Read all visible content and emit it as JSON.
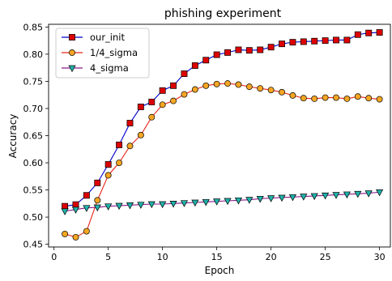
{
  "chart_data": {
    "type": "line",
    "title": "phishing experiment",
    "xlabel": "Epoch",
    "ylabel": "Accuracy",
    "xlim": [
      -0.5,
      31
    ],
    "ylim": [
      0.445,
      0.855
    ],
    "xticks": [
      0,
      5,
      10,
      15,
      20,
      25,
      30
    ],
    "yticks": [
      0.45,
      0.5,
      0.55,
      0.6,
      0.65,
      0.7,
      0.75,
      0.8,
      0.85
    ],
    "xtick_labels": [
      "0",
      "5",
      "10",
      "15",
      "20",
      "25",
      "30"
    ],
    "ytick_labels": [
      "0.45",
      "0.50",
      "0.55",
      "0.60",
      "0.65",
      "0.70",
      "0.75",
      "0.80",
      "0.85"
    ],
    "grid": false,
    "legend_position": "upper-left",
    "x": [
      1,
      2,
      3,
      4,
      5,
      6,
      7,
      8,
      9,
      10,
      11,
      12,
      13,
      14,
      15,
      16,
      17,
      18,
      19,
      20,
      21,
      22,
      23,
      24,
      25,
      26,
      27,
      28,
      29,
      30
    ],
    "series": [
      {
        "name": "our_init",
        "marker": "square",
        "line_color": "#0000cc",
        "marker_color": "#dd0000",
        "values": [
          0.52,
          0.523,
          0.54,
          0.563,
          0.597,
          0.633,
          0.673,
          0.703,
          0.712,
          0.733,
          0.742,
          0.764,
          0.779,
          0.789,
          0.799,
          0.803,
          0.808,
          0.807,
          0.808,
          0.813,
          0.819,
          0.822,
          0.823,
          0.824,
          0.825,
          0.826,
          0.826,
          0.836,
          0.839,
          0.84
        ]
      },
      {
        "name": "1/4_sigma",
        "marker": "circle",
        "line_color": "#e8241a",
        "marker_color": "#f5a623",
        "values": [
          0.469,
          0.463,
          0.474,
          0.531,
          0.577,
          0.6,
          0.631,
          0.651,
          0.684,
          0.707,
          0.714,
          0.726,
          0.735,
          0.742,
          0.745,
          0.746,
          0.744,
          0.74,
          0.737,
          0.734,
          0.73,
          0.724,
          0.719,
          0.718,
          0.72,
          0.72,
          0.718,
          0.722,
          0.719,
          0.717
        ]
      },
      {
        "name": "4_sigma",
        "marker": "triangle-down",
        "line_color": "#8b1a8b",
        "marker_color": "#20b2aa",
        "values": [
          0.511,
          0.514,
          0.517,
          0.518,
          0.52,
          0.521,
          0.522,
          0.523,
          0.524,
          0.524,
          0.525,
          0.526,
          0.527,
          0.528,
          0.529,
          0.53,
          0.531,
          0.532,
          0.534,
          0.535,
          0.536,
          0.537,
          0.538,
          0.539,
          0.54,
          0.541,
          0.542,
          0.543,
          0.544,
          0.546
        ]
      }
    ]
  }
}
